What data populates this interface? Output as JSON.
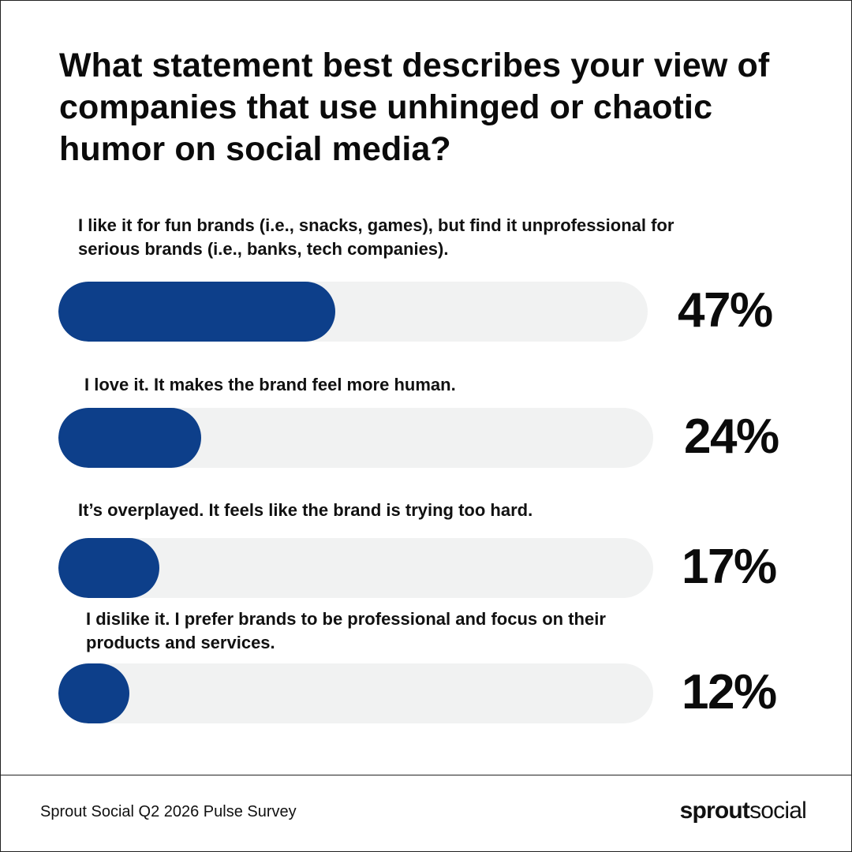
{
  "title": "What statement best describes your view of companies that use unhinged or chaotic humor on social media?",
  "colors": {
    "bar_fill": "#0d3f8a",
    "bar_track": "#f1f2f2",
    "text": "#0b0b0b"
  },
  "chart_data": {
    "type": "bar",
    "orientation": "horizontal",
    "title": "What statement best describes your view of companies that use unhinged or chaotic humor on social media?",
    "categories": [
      "I like it for fun brands (i.e., snacks, games), but find it unprofessional for serious brands (i.e., banks, tech companies).",
      "I love it. It makes the brand feel more human.",
      "It’s overplayed. It feels like the brand is trying too hard.",
      "I dislike it. I prefer brands to be professional and focus on their products and services."
    ],
    "values": [
      47,
      24,
      17,
      12
    ],
    "value_labels": [
      "47%",
      "24%",
      "17%",
      "12%"
    ],
    "unit": "%",
    "xlim": [
      0,
      100
    ],
    "grid": false
  },
  "footer": {
    "source": "Sprout Social Q2 2026 Pulse Survey",
    "logo_bold": "sprout",
    "logo_light": "social"
  }
}
